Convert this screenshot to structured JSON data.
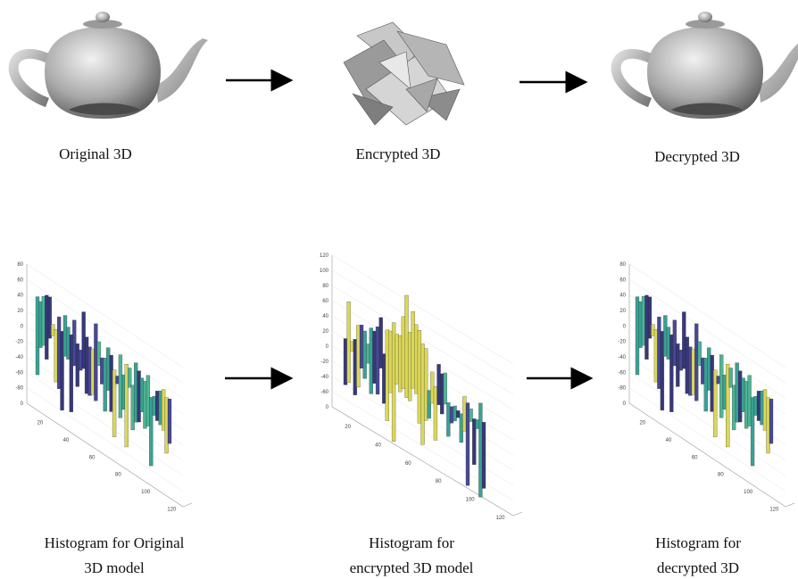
{
  "top": {
    "captions": [
      "Original 3D",
      "Encrypted 3D",
      "Decrypted 3D"
    ]
  },
  "bottom": {
    "captions": [
      [
        "Histogram for Original",
        "3D model"
      ],
      [
        "Histogram for",
        "encrypted 3D model"
      ],
      [
        "Histogram for",
        "decrypted 3D"
      ]
    ],
    "histograms": [
      {
        "yticks": [
          "80",
          "60",
          "40",
          "20",
          "0",
          "-20",
          "-40",
          "-60",
          "-80",
          "0"
        ],
        "xticks": [
          "20",
          "40",
          "60",
          "80",
          "100",
          "120"
        ]
      },
      {
        "yticks": [
          "120",
          "100",
          "80",
          "60",
          "40",
          "20",
          "0",
          "-20",
          "-40",
          "-60",
          "0"
        ],
        "xticks": [
          "20",
          "40",
          "60",
          "80",
          "100",
          "120"
        ]
      },
      {
        "yticks": [
          "80",
          "60",
          "40",
          "20",
          "0",
          "-20",
          "-40",
          "-60",
          "-80",
          "0"
        ],
        "xticks": [
          "20",
          "40",
          "60",
          "80",
          "100",
          "120"
        ]
      }
    ]
  }
}
